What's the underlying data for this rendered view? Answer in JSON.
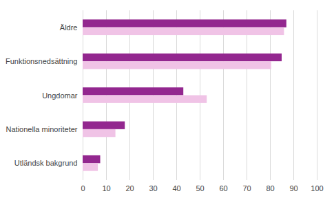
{
  "chart_data": {
    "type": "bar",
    "orientation": "horizontal",
    "categories": [
      "Äldre",
      "Funktionsnedsättning",
      "Ungdomar",
      "Nationella minoriteter",
      "Utländsk bakgrund"
    ],
    "series": [
      {
        "color": "#93278f",
        "values": [
          87,
          85,
          43,
          18,
          7.5
        ]
      },
      {
        "color": "#f0c3e6",
        "values": [
          86,
          80.5,
          53,
          14,
          6.5
        ]
      }
    ],
    "xlim": [
      0,
      100
    ],
    "xticks": [
      0,
      10,
      20,
      30,
      40,
      50,
      60,
      70,
      80,
      90,
      100
    ],
    "grid": true
  }
}
